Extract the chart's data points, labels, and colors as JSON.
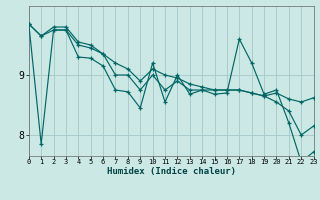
{
  "title": "",
  "xlabel": "Humidex (Indice chaleur)",
  "ylabel": "",
  "background_color": "#cce8e4",
  "grid_color": "#aacccc",
  "line_color": "#006666",
  "xlim": [
    0,
    23
  ],
  "ylim": [
    7.65,
    10.15
  ],
  "yticks": [
    8,
    9
  ],
  "ytick_labels": [
    "8",
    "9"
  ],
  "xticks": [
    0,
    1,
    2,
    3,
    4,
    5,
    6,
    7,
    8,
    9,
    10,
    11,
    12,
    13,
    14,
    15,
    16,
    17,
    18,
    19,
    20,
    21,
    22,
    23
  ],
  "series": [
    [
      9.85,
      7.85,
      9.75,
      9.75,
      9.3,
      9.28,
      9.15,
      8.75,
      8.72,
      8.45,
      9.2,
      8.55,
      9.0,
      8.68,
      8.75,
      8.68,
      8.7,
      9.6,
      9.2,
      8.68,
      8.75,
      8.2,
      7.55,
      7.72
    ],
    [
      9.85,
      9.65,
      9.75,
      9.75,
      9.5,
      9.45,
      9.35,
      9.0,
      9.0,
      8.75,
      9.0,
      8.75,
      8.9,
      8.75,
      8.75,
      8.75,
      8.75,
      8.75,
      8.7,
      8.65,
      8.7,
      8.6,
      8.55,
      8.62
    ],
    [
      9.85,
      9.65,
      9.8,
      9.8,
      9.55,
      9.5,
      9.35,
      9.2,
      9.1,
      8.9,
      9.1,
      9.0,
      8.95,
      8.85,
      8.8,
      8.75,
      8.75,
      8.75,
      8.7,
      8.65,
      8.55,
      8.4,
      8.0,
      8.15
    ]
  ]
}
